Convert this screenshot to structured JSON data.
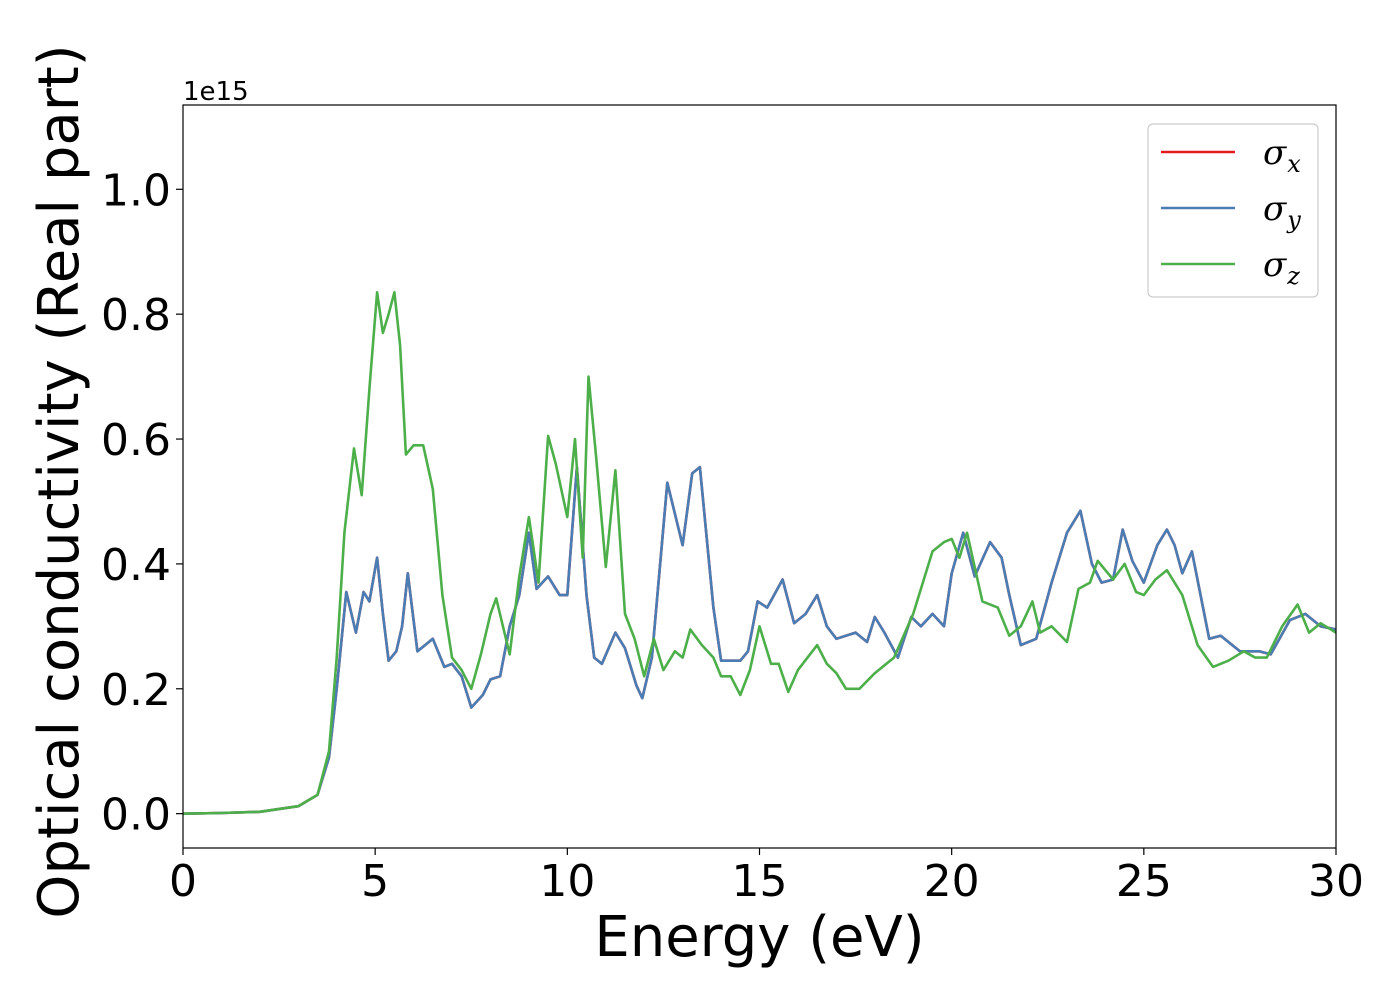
{
  "chart_data": {
    "type": "line",
    "xlabel": "Energy (eV)",
    "ylabel": "Optical conductivity (Real part)",
    "offset_label": "1e15",
    "xlim": [
      0,
      30
    ],
    "ylim": [
      -0.055,
      1.135
    ],
    "x_ticks": [
      0,
      5,
      10,
      15,
      20,
      25,
      30
    ],
    "x_tick_labels": [
      "0",
      "5",
      "10",
      "15",
      "20",
      "25",
      "30"
    ],
    "y_ticks": [
      0.0,
      0.2,
      0.4,
      0.6,
      0.8,
      1.0
    ],
    "y_tick_labels": [
      "0.0",
      "0.2",
      "0.4",
      "0.6",
      "0.8",
      "1.0"
    ],
    "grid": false,
    "legend_position": "top-right",
    "series": [
      {
        "name": "σx",
        "legend_symbol": "σ",
        "legend_subscript": "x",
        "color": "#e41a1c",
        "hidden_behind": "σy",
        "points": [
          [
            0,
            0
          ],
          [
            1,
            0.001
          ],
          [
            2,
            0.003
          ],
          [
            3,
            0.012
          ],
          [
            3.5,
            0.03
          ],
          [
            3.8,
            0.09
          ],
          [
            4.0,
            0.2
          ],
          [
            4.25,
            0.355
          ],
          [
            4.5,
            0.29
          ],
          [
            4.7,
            0.355
          ],
          [
            4.85,
            0.34
          ],
          [
            5.05,
            0.41
          ],
          [
            5.2,
            0.32
          ],
          [
            5.35,
            0.245
          ],
          [
            5.55,
            0.26
          ],
          [
            5.7,
            0.3
          ],
          [
            5.85,
            0.385
          ],
          [
            6.1,
            0.26
          ],
          [
            6.3,
            0.27
          ],
          [
            6.5,
            0.28
          ],
          [
            6.8,
            0.235
          ],
          [
            7.0,
            0.24
          ],
          [
            7.25,
            0.22
          ],
          [
            7.5,
            0.17
          ],
          [
            7.8,
            0.19
          ],
          [
            8.0,
            0.215
          ],
          [
            8.25,
            0.22
          ],
          [
            8.5,
            0.3
          ],
          [
            8.75,
            0.35
          ],
          [
            9.0,
            0.45
          ],
          [
            9.2,
            0.36
          ],
          [
            9.5,
            0.38
          ],
          [
            9.8,
            0.35
          ],
          [
            10.0,
            0.35
          ],
          [
            10.25,
            0.555
          ],
          [
            10.5,
            0.35
          ],
          [
            10.7,
            0.25
          ],
          [
            10.9,
            0.24
          ],
          [
            11.25,
            0.29
          ],
          [
            11.5,
            0.265
          ],
          [
            11.8,
            0.205
          ],
          [
            11.95,
            0.185
          ],
          [
            12.2,
            0.25
          ],
          [
            12.6,
            0.53
          ],
          [
            13.0,
            0.43
          ],
          [
            13.25,
            0.545
          ],
          [
            13.45,
            0.555
          ],
          [
            13.8,
            0.33
          ],
          [
            14.0,
            0.245
          ],
          [
            14.5,
            0.245
          ],
          [
            14.7,
            0.26
          ],
          [
            14.95,
            0.34
          ],
          [
            15.2,
            0.33
          ],
          [
            15.6,
            0.375
          ],
          [
            15.9,
            0.305
          ],
          [
            16.2,
            0.32
          ],
          [
            16.5,
            0.35
          ],
          [
            16.75,
            0.3
          ],
          [
            17.0,
            0.28
          ],
          [
            17.5,
            0.29
          ],
          [
            17.8,
            0.275
          ],
          [
            18.0,
            0.315
          ],
          [
            18.25,
            0.29
          ],
          [
            18.6,
            0.25
          ],
          [
            18.95,
            0.315
          ],
          [
            19.2,
            0.3
          ],
          [
            19.5,
            0.32
          ],
          [
            19.8,
            0.3
          ],
          [
            20.0,
            0.385
          ],
          [
            20.3,
            0.45
          ],
          [
            20.6,
            0.38
          ],
          [
            21.0,
            0.435
          ],
          [
            21.3,
            0.41
          ],
          [
            21.5,
            0.35
          ],
          [
            21.8,
            0.27
          ],
          [
            22.2,
            0.28
          ],
          [
            22.6,
            0.37
          ],
          [
            23.0,
            0.45
          ],
          [
            23.35,
            0.485
          ],
          [
            23.65,
            0.4
          ],
          [
            23.9,
            0.37
          ],
          [
            24.2,
            0.375
          ],
          [
            24.45,
            0.455
          ],
          [
            24.7,
            0.405
          ],
          [
            25.0,
            0.37
          ],
          [
            25.35,
            0.43
          ],
          [
            25.6,
            0.455
          ],
          [
            25.8,
            0.43
          ],
          [
            26.0,
            0.385
          ],
          [
            26.25,
            0.42
          ],
          [
            26.7,
            0.28
          ],
          [
            27.0,
            0.285
          ],
          [
            27.5,
            0.26
          ],
          [
            28.0,
            0.26
          ],
          [
            28.3,
            0.255
          ],
          [
            28.8,
            0.31
          ],
          [
            29.2,
            0.32
          ],
          [
            29.6,
            0.3
          ],
          [
            30.0,
            0.295
          ]
        ]
      },
      {
        "name": "σy",
        "legend_symbol": "σ",
        "legend_subscript": "y",
        "color": "#4a7db3",
        "points": [
          [
            0,
            0
          ],
          [
            1,
            0.001
          ],
          [
            2,
            0.003
          ],
          [
            3,
            0.012
          ],
          [
            3.5,
            0.03
          ],
          [
            3.8,
            0.09
          ],
          [
            4.0,
            0.2
          ],
          [
            4.25,
            0.355
          ],
          [
            4.5,
            0.29
          ],
          [
            4.7,
            0.355
          ],
          [
            4.85,
            0.34
          ],
          [
            5.05,
            0.41
          ],
          [
            5.2,
            0.32
          ],
          [
            5.35,
            0.245
          ],
          [
            5.55,
            0.26
          ],
          [
            5.7,
            0.3
          ],
          [
            5.85,
            0.385
          ],
          [
            6.1,
            0.26
          ],
          [
            6.3,
            0.27
          ],
          [
            6.5,
            0.28
          ],
          [
            6.8,
            0.235
          ],
          [
            7.0,
            0.24
          ],
          [
            7.25,
            0.22
          ],
          [
            7.5,
            0.17
          ],
          [
            7.8,
            0.19
          ],
          [
            8.0,
            0.215
          ],
          [
            8.25,
            0.22
          ],
          [
            8.5,
            0.3
          ],
          [
            8.75,
            0.35
          ],
          [
            9.0,
            0.45
          ],
          [
            9.2,
            0.36
          ],
          [
            9.5,
            0.38
          ],
          [
            9.8,
            0.35
          ],
          [
            10.0,
            0.35
          ],
          [
            10.25,
            0.555
          ],
          [
            10.5,
            0.35
          ],
          [
            10.7,
            0.25
          ],
          [
            10.9,
            0.24
          ],
          [
            11.25,
            0.29
          ],
          [
            11.5,
            0.265
          ],
          [
            11.8,
            0.205
          ],
          [
            11.95,
            0.185
          ],
          [
            12.2,
            0.25
          ],
          [
            12.6,
            0.53
          ],
          [
            13.0,
            0.43
          ],
          [
            13.25,
            0.545
          ],
          [
            13.45,
            0.555
          ],
          [
            13.8,
            0.33
          ],
          [
            14.0,
            0.245
          ],
          [
            14.5,
            0.245
          ],
          [
            14.7,
            0.26
          ],
          [
            14.95,
            0.34
          ],
          [
            15.2,
            0.33
          ],
          [
            15.6,
            0.375
          ],
          [
            15.9,
            0.305
          ],
          [
            16.2,
            0.32
          ],
          [
            16.5,
            0.35
          ],
          [
            16.75,
            0.3
          ],
          [
            17.0,
            0.28
          ],
          [
            17.5,
            0.29
          ],
          [
            17.8,
            0.275
          ],
          [
            18.0,
            0.315
          ],
          [
            18.25,
            0.29
          ],
          [
            18.6,
            0.25
          ],
          [
            18.95,
            0.315
          ],
          [
            19.2,
            0.3
          ],
          [
            19.5,
            0.32
          ],
          [
            19.8,
            0.3
          ],
          [
            20.0,
            0.385
          ],
          [
            20.3,
            0.45
          ],
          [
            20.6,
            0.38
          ],
          [
            21.0,
            0.435
          ],
          [
            21.3,
            0.41
          ],
          [
            21.5,
            0.35
          ],
          [
            21.8,
            0.27
          ],
          [
            22.2,
            0.28
          ],
          [
            22.6,
            0.37
          ],
          [
            23.0,
            0.45
          ],
          [
            23.35,
            0.485
          ],
          [
            23.65,
            0.4
          ],
          [
            23.9,
            0.37
          ],
          [
            24.2,
            0.375
          ],
          [
            24.45,
            0.455
          ],
          [
            24.7,
            0.405
          ],
          [
            25.0,
            0.37
          ],
          [
            25.35,
            0.43
          ],
          [
            25.6,
            0.455
          ],
          [
            25.8,
            0.43
          ],
          [
            26.0,
            0.385
          ],
          [
            26.25,
            0.42
          ],
          [
            26.7,
            0.28
          ],
          [
            27.0,
            0.285
          ],
          [
            27.5,
            0.26
          ],
          [
            28.0,
            0.26
          ],
          [
            28.3,
            0.255
          ],
          [
            28.8,
            0.31
          ],
          [
            29.2,
            0.32
          ],
          [
            29.6,
            0.3
          ],
          [
            30.0,
            0.295
          ]
        ]
      },
      {
        "name": "σz",
        "legend_symbol": "σ",
        "legend_subscript": "z",
        "color": "#4daf4a",
        "points": [
          [
            0,
            0
          ],
          [
            1,
            0.001
          ],
          [
            2,
            0.003
          ],
          [
            3,
            0.012
          ],
          [
            3.5,
            0.03
          ],
          [
            3.8,
            0.1
          ],
          [
            4.0,
            0.25
          ],
          [
            4.2,
            0.45
          ],
          [
            4.45,
            0.585
          ],
          [
            4.65,
            0.51
          ],
          [
            4.85,
            0.68
          ],
          [
            5.05,
            0.835
          ],
          [
            5.2,
            0.77
          ],
          [
            5.35,
            0.8
          ],
          [
            5.5,
            0.835
          ],
          [
            5.65,
            0.75
          ],
          [
            5.8,
            0.575
          ],
          [
            6.0,
            0.59
          ],
          [
            6.25,
            0.59
          ],
          [
            6.5,
            0.52
          ],
          [
            6.75,
            0.35
          ],
          [
            7.0,
            0.25
          ],
          [
            7.25,
            0.23
          ],
          [
            7.5,
            0.2
          ],
          [
            7.75,
            0.255
          ],
          [
            8.0,
            0.32
          ],
          [
            8.15,
            0.345
          ],
          [
            8.5,
            0.255
          ],
          [
            8.75,
            0.38
          ],
          [
            9.0,
            0.475
          ],
          [
            9.25,
            0.37
          ],
          [
            9.5,
            0.605
          ],
          [
            9.7,
            0.56
          ],
          [
            10.0,
            0.475
          ],
          [
            10.2,
            0.6
          ],
          [
            10.4,
            0.41
          ],
          [
            10.55,
            0.7
          ],
          [
            10.75,
            0.57
          ],
          [
            11.0,
            0.395
          ],
          [
            11.25,
            0.55
          ],
          [
            11.5,
            0.32
          ],
          [
            11.75,
            0.28
          ],
          [
            12.0,
            0.22
          ],
          [
            12.25,
            0.28
          ],
          [
            12.5,
            0.23
          ],
          [
            12.8,
            0.26
          ],
          [
            13.0,
            0.25
          ],
          [
            13.2,
            0.295
          ],
          [
            13.5,
            0.27
          ],
          [
            13.8,
            0.25
          ],
          [
            14.0,
            0.22
          ],
          [
            14.25,
            0.22
          ],
          [
            14.5,
            0.19
          ],
          [
            14.75,
            0.23
          ],
          [
            15.0,
            0.3
          ],
          [
            15.3,
            0.24
          ],
          [
            15.5,
            0.24
          ],
          [
            15.75,
            0.195
          ],
          [
            16.0,
            0.23
          ],
          [
            16.25,
            0.25
          ],
          [
            16.5,
            0.27
          ],
          [
            16.75,
            0.24
          ],
          [
            17.0,
            0.225
          ],
          [
            17.25,
            0.2
          ],
          [
            17.6,
            0.2
          ],
          [
            18.0,
            0.225
          ],
          [
            18.5,
            0.25
          ],
          [
            19.0,
            0.32
          ],
          [
            19.5,
            0.42
          ],
          [
            19.8,
            0.435
          ],
          [
            20.0,
            0.44
          ],
          [
            20.2,
            0.41
          ],
          [
            20.4,
            0.45
          ],
          [
            20.8,
            0.34
          ],
          [
            21.2,
            0.33
          ],
          [
            21.5,
            0.285
          ],
          [
            21.8,
            0.3
          ],
          [
            22.1,
            0.34
          ],
          [
            22.3,
            0.29
          ],
          [
            22.6,
            0.3
          ],
          [
            23.0,
            0.275
          ],
          [
            23.3,
            0.36
          ],
          [
            23.6,
            0.37
          ],
          [
            23.8,
            0.405
          ],
          [
            24.2,
            0.375
          ],
          [
            24.5,
            0.4
          ],
          [
            24.8,
            0.355
          ],
          [
            25.0,
            0.35
          ],
          [
            25.3,
            0.375
          ],
          [
            25.6,
            0.39
          ],
          [
            26.0,
            0.35
          ],
          [
            26.4,
            0.27
          ],
          [
            26.8,
            0.235
          ],
          [
            27.2,
            0.245
          ],
          [
            27.6,
            0.26
          ],
          [
            27.9,
            0.25
          ],
          [
            28.2,
            0.25
          ],
          [
            28.6,
            0.3
          ],
          [
            29.0,
            0.335
          ],
          [
            29.3,
            0.29
          ],
          [
            29.6,
            0.305
          ],
          [
            30.0,
            0.29
          ]
        ]
      }
    ]
  }
}
